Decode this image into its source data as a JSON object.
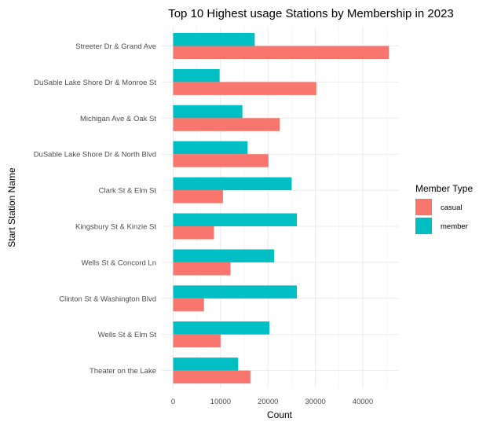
{
  "chart_data": {
    "type": "bar",
    "orientation": "horizontal",
    "title": "Top 10 Highest usage Stations by Membership in 2023",
    "xlabel": "Count",
    "ylabel": "Start Station Name",
    "xlim": [
      0,
      48000
    ],
    "xticks": [
      0,
      10000,
      20000,
      30000,
      40000
    ],
    "grid": true,
    "legend": {
      "title": "Member Type",
      "placement": "right"
    },
    "categories": [
      "Streeter Dr & Grand Ave",
      "DuSable Lake Shore Dr & Monroe St",
      "Michigan Ave & Oak St",
      "DuSable Lake Shore Dr & North Blvd",
      "Clark St & Elm St",
      "Kingsbury St & Kinzie St",
      "Wells St & Concord Ln",
      "Clinton St & Washington Blvd",
      "Wells St & Elm St",
      "Theater on the Lake"
    ],
    "series": [
      {
        "name": "casual",
        "color": "#F8766D",
        "values": [
          45500,
          30200,
          22500,
          20100,
          10500,
          8600,
          12100,
          6500,
          10000,
          16300
        ]
      },
      {
        "name": "member",
        "color": "#00BFC4",
        "values": [
          17200,
          9800,
          14600,
          15700,
          25000,
          26100,
          21300,
          26100,
          20300,
          13700
        ]
      }
    ]
  }
}
